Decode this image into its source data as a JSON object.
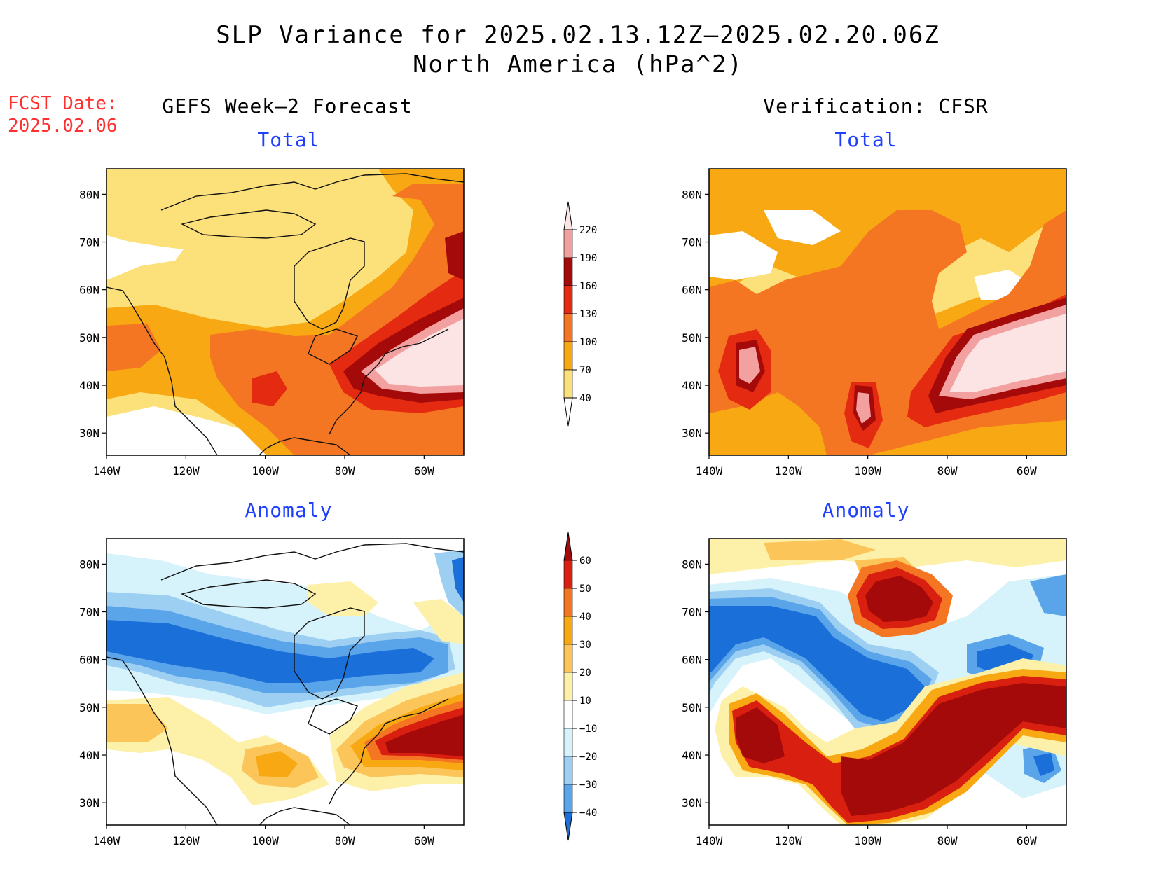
{
  "title": {
    "line1": "SLP Variance for 2025.02.13.12Z–2025.02.20.06Z",
    "line2": "North America (hPa^2)"
  },
  "fcst": {
    "label": "FCST Date:",
    "date": "2025.02.06"
  },
  "columns": {
    "left": "GEFS Week–2 Forecast",
    "right": "Verification: CFSR"
  },
  "panels": {
    "total": "Total",
    "anomaly": "Anomaly"
  },
  "axes": {
    "lon_labels": [
      "140W",
      "120W",
      "100W",
      "80W",
      "60W"
    ],
    "lat_labels": [
      "80N",
      "70N",
      "60N",
      "50N",
      "40N",
      "30N"
    ]
  },
  "legends": {
    "total": {
      "levels": [
        "40",
        "70",
        "100",
        "130",
        "160",
        "190",
        "220"
      ],
      "colors": [
        "#fce07a",
        "#f8a812",
        "#f47622",
        "#e42a10",
        "#a50a0a",
        "#f2a0a0",
        "#fde4e4"
      ]
    },
    "anomaly": {
      "levels": [
        "60",
        "50",
        "40",
        "30",
        "20",
        "10",
        "−10",
        "−20",
        "−30",
        "−40"
      ],
      "colors": [
        "#a50a0a",
        "#d91f10",
        "#f47622",
        "#f8a812",
        "#fcc55a",
        "#fdf0a8",
        "#ffffff",
        "#d6f2fb",
        "#9ccff2",
        "#5aa4ea",
        "#1a6fd8"
      ]
    }
  },
  "palette": {
    "text_blue": "#1f3fff",
    "text_red": "#ff3030"
  }
}
